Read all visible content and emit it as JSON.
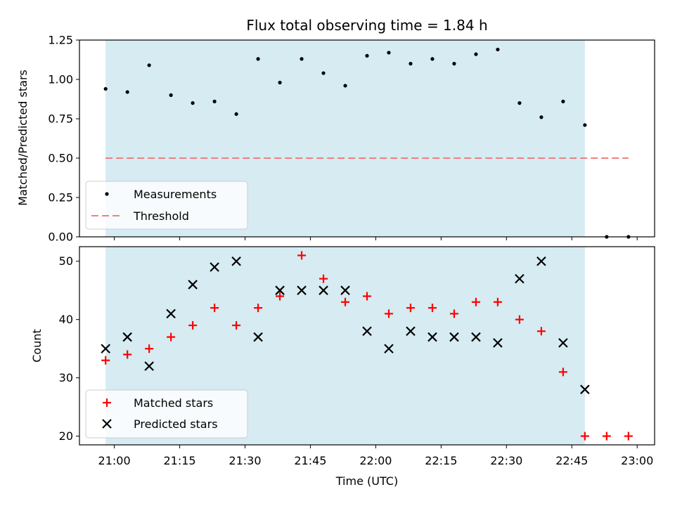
{
  "colors": {
    "shade": "#add8e6",
    "measurement": "#000000",
    "threshold": "#f08080",
    "matched": "#ff0000",
    "predicted": "#000000"
  },
  "chart_data": [
    {
      "type": "scatter",
      "title": "Flux total observing time = 1.84 h",
      "xlabel": "",
      "ylabel": "Matched/Predicted stars",
      "ylim": [
        0,
        1.25
      ],
      "yticks": [
        "0.00",
        "0.25",
        "0.50",
        "0.75",
        "1.00",
        "1.25"
      ],
      "shaded_region": {
        "x_start": "20:58",
        "x_end": "22:48"
      },
      "legend": {
        "location": "lower-left",
        "entries": [
          "Measurements",
          "Threshold"
        ]
      },
      "series": [
        {
          "name": "Measurements",
          "x": [
            "20:58",
            "21:03",
            "21:08",
            "21:13",
            "21:18",
            "21:23",
            "21:28",
            "21:33",
            "21:38",
            "21:43",
            "21:48",
            "21:53",
            "21:58",
            "22:03",
            "22:08",
            "22:13",
            "22:18",
            "22:23",
            "22:28",
            "22:33",
            "22:38",
            "22:43",
            "22:48",
            "22:53",
            "22:58"
          ],
          "y": [
            0.94,
            0.92,
            1.09,
            0.9,
            0.85,
            0.86,
            0.78,
            1.13,
            0.98,
            1.13,
            1.04,
            0.96,
            1.15,
            1.17,
            1.1,
            1.13,
            1.1,
            1.16,
            1.19,
            0.85,
            0.76,
            0.86,
            0.71,
            0.0,
            0.0
          ]
        },
        {
          "name": "Threshold",
          "style": "dashed-line",
          "x": [
            "20:58",
            "22:58"
          ],
          "y": [
            0.5,
            0.5
          ]
        }
      ]
    },
    {
      "type": "scatter",
      "title": "",
      "xlabel": "Time (UTC)",
      "ylabel": "Count",
      "ylim": [
        18.5,
        52.5
      ],
      "yticks": [
        "20",
        "30",
        "40",
        "50"
      ],
      "xticks": [
        "21:00",
        "21:15",
        "21:30",
        "21:45",
        "22:00",
        "22:15",
        "22:30",
        "22:45",
        "23:00"
      ],
      "xlim": [
        "20:52",
        "23:04"
      ],
      "shaded_region": {
        "x_start": "20:58",
        "x_end": "22:48"
      },
      "legend": {
        "location": "lower-left",
        "entries": [
          "Matched stars",
          "Predicted stars"
        ]
      },
      "series": [
        {
          "name": "Matched stars",
          "marker": "plus",
          "x": [
            "20:58",
            "21:03",
            "21:08",
            "21:13",
            "21:18",
            "21:23",
            "21:28",
            "21:33",
            "21:38",
            "21:43",
            "21:48",
            "21:53",
            "21:58",
            "22:03",
            "22:08",
            "22:13",
            "22:18",
            "22:23",
            "22:28",
            "22:33",
            "22:38",
            "22:43",
            "22:48",
            "22:53",
            "22:58"
          ],
          "y": [
            33,
            34,
            35,
            37,
            39,
            42,
            39,
            42,
            44,
            51,
            47,
            43,
            44,
            41,
            42,
            42,
            41,
            43,
            43,
            40,
            38,
            31,
            20,
            20,
            20
          ]
        },
        {
          "name": "Predicted stars",
          "marker": "x",
          "x": [
            "20:58",
            "21:03",
            "21:08",
            "21:13",
            "21:18",
            "21:23",
            "21:28",
            "21:33",
            "21:38",
            "21:43",
            "21:48",
            "21:53",
            "21:58",
            "22:03",
            "22:08",
            "22:13",
            "22:18",
            "22:23",
            "22:28",
            "22:33",
            "22:38",
            "22:43",
            "22:48"
          ],
          "y": [
            35,
            37,
            32,
            41,
            46,
            49,
            50,
            37,
            45,
            45,
            45,
            45,
            38,
            35,
            38,
            37,
            37,
            37,
            36,
            47,
            50,
            36,
            28
          ]
        }
      ]
    }
  ]
}
